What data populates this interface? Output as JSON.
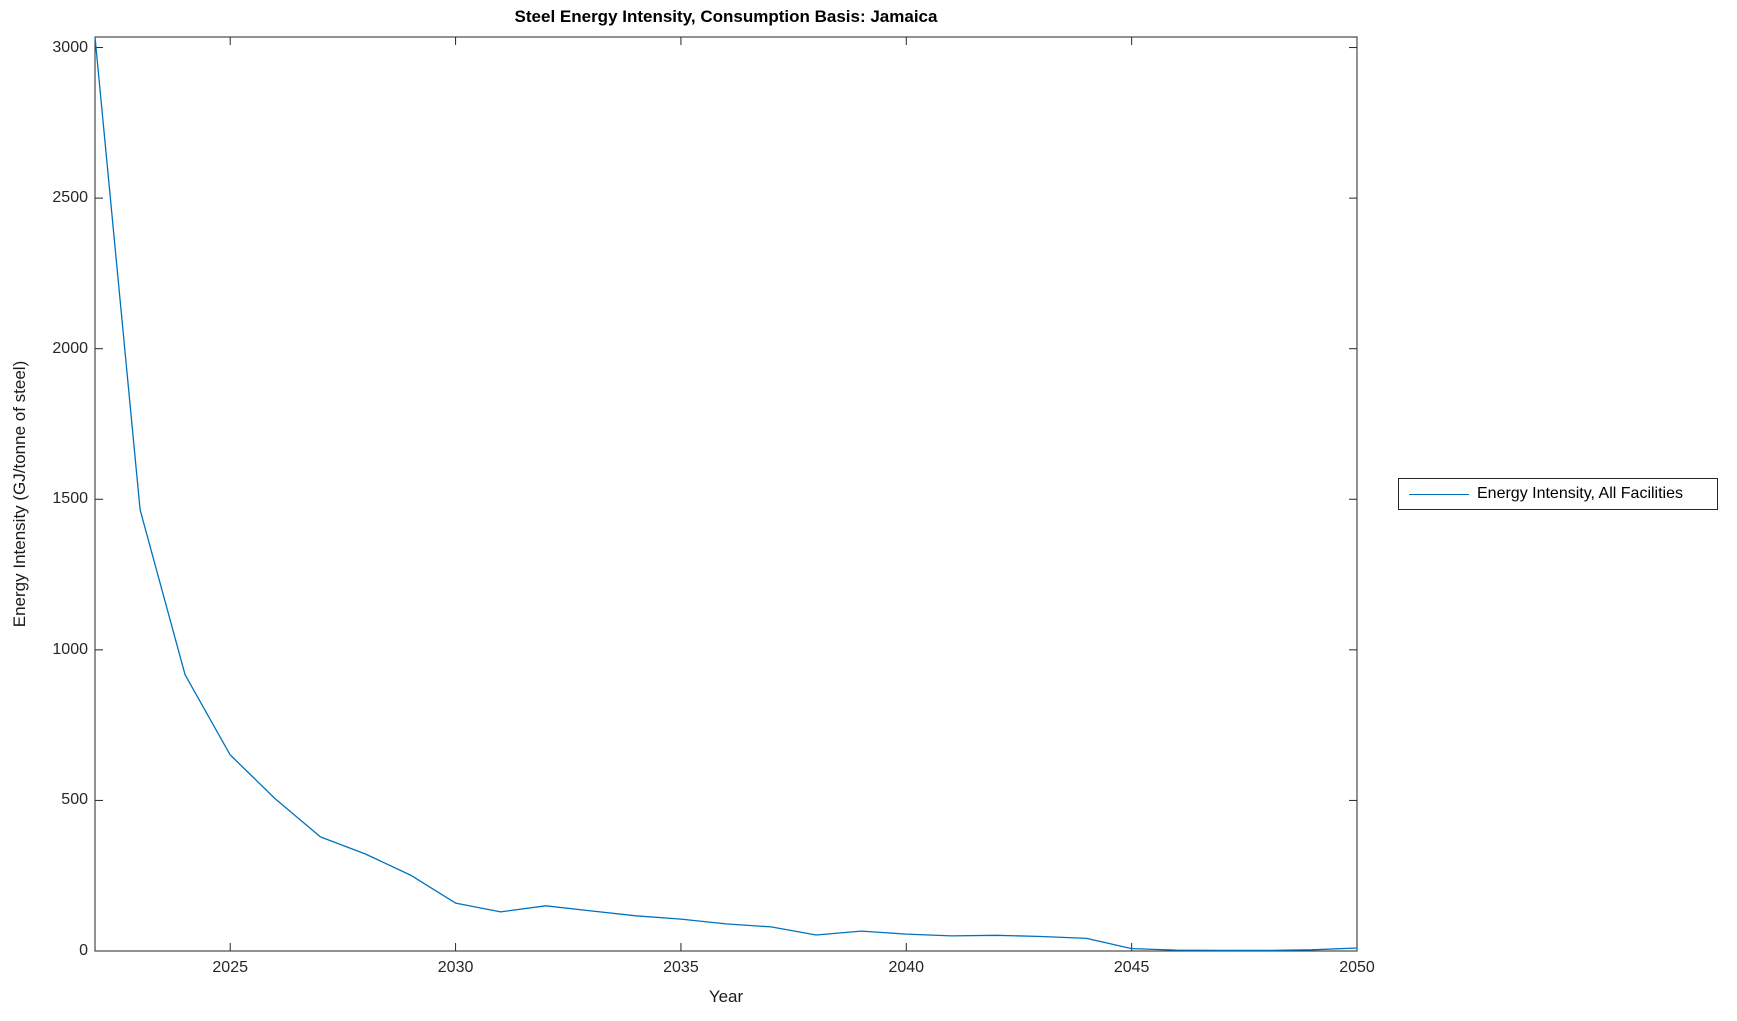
{
  "title": "Steel Energy Intensity, Consumption Basis: Jamaica",
  "chart_data": {
    "type": "line",
    "title": "Steel Energy Intensity, Consumption Basis: Jamaica",
    "xlabel": "Year",
    "ylabel": "Energy Intensity (GJ/tonne of steel)",
    "xlim": [
      2022,
      2050
    ],
    "ylim": [
      0,
      3035
    ],
    "xticks": [
      2025,
      2030,
      2035,
      2040,
      2045,
      2050
    ],
    "yticks": [
      0,
      500,
      1000,
      1500,
      2000,
      2500,
      3000
    ],
    "grid": false,
    "legend_position": "outside-right",
    "axis_color": "#262626",
    "series": [
      {
        "name": "Energy Intensity, All Facilities",
        "color": "#0072BD",
        "x": [
          2022,
          2023,
          2024,
          2025,
          2026,
          2027,
          2028,
          2029,
          2030,
          2031,
          2032,
          2033,
          2034,
          2035,
          2036,
          2037,
          2038,
          2039,
          2040,
          2041,
          2042,
          2043,
          2044,
          2045,
          2046,
          2047,
          2048,
          2049,
          2050
        ],
        "values": [
          3035,
          1465,
          917,
          651,
          505,
          379,
          322,
          252,
          159,
          130,
          150,
          133,
          117,
          106,
          90,
          80,
          53,
          66,
          56,
          50,
          52,
          48,
          42,
          8,
          3,
          2,
          2,
          4,
          10
        ]
      }
    ]
  }
}
